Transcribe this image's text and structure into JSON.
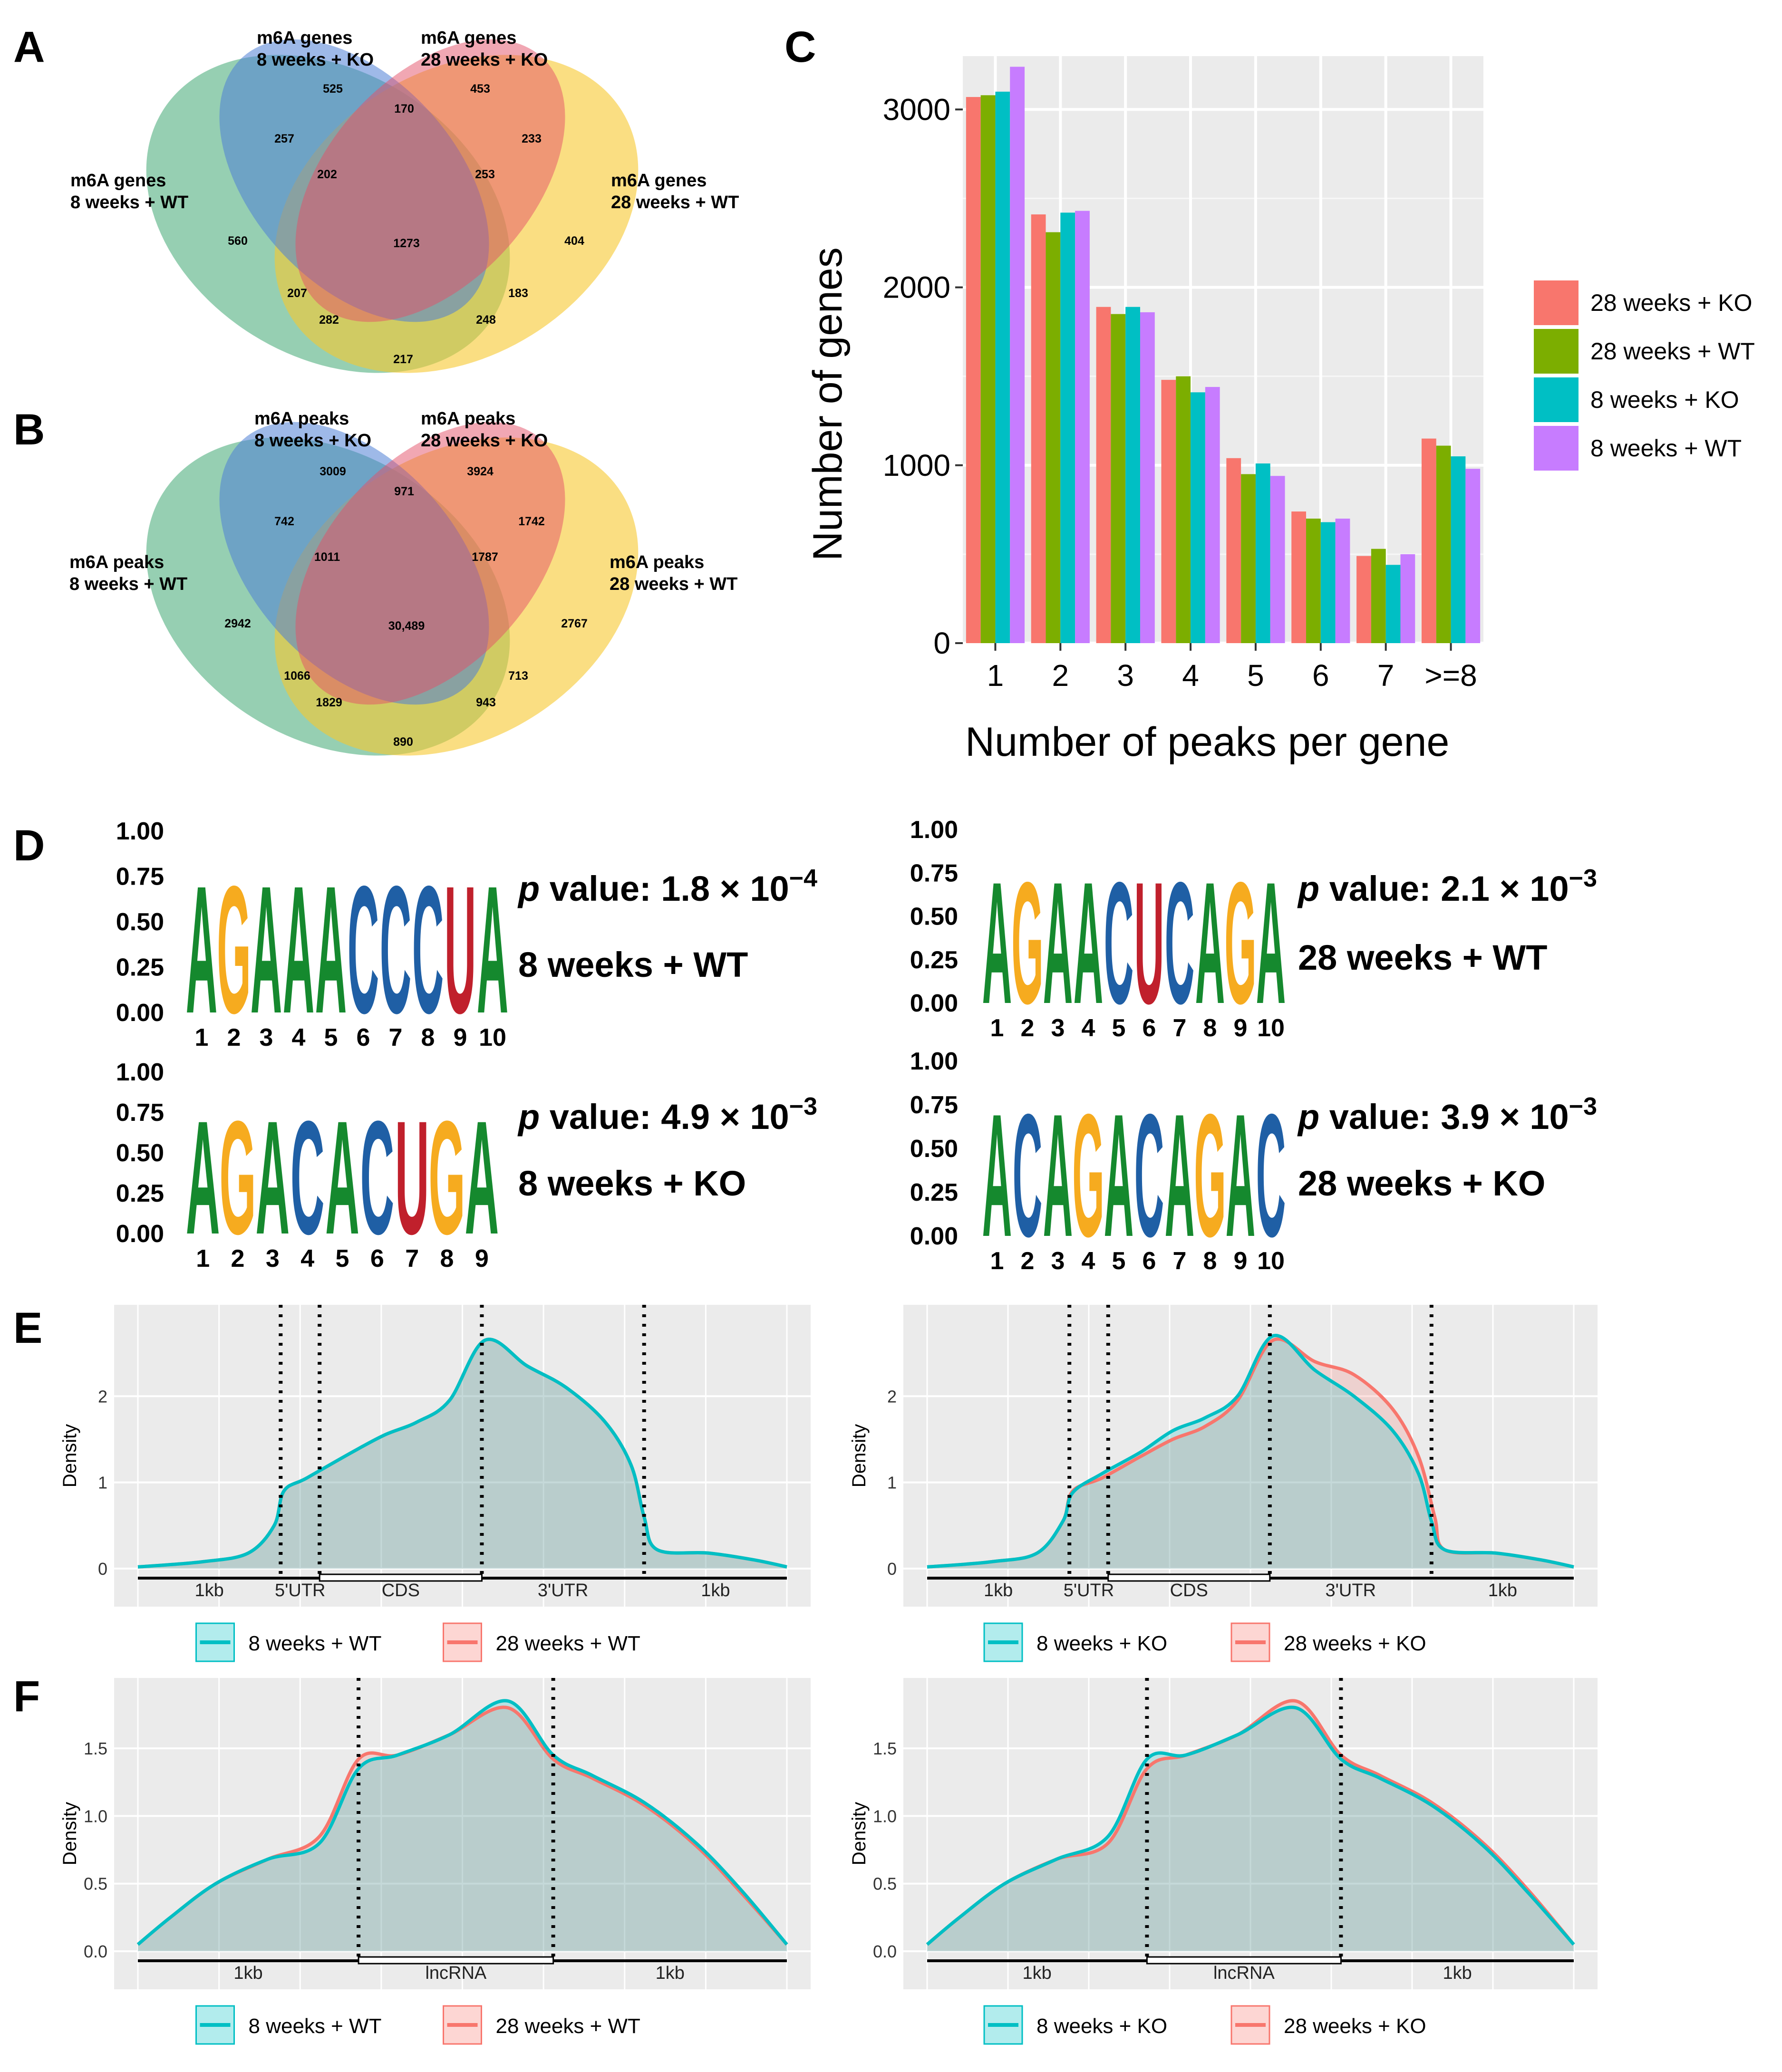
{
  "panel_labels": {
    "A": "A",
    "B": "B",
    "C": "C",
    "D": "D",
    "E": "E",
    "F": "F"
  },
  "venn_genes": {
    "sets": [
      {
        "line1": "m6A genes",
        "line2": "8 weeks + KO",
        "color": "#4f7fd6"
      },
      {
        "line1": "m6A genes",
        "line2": "28 weeks + KO",
        "color": "#e35068"
      },
      {
        "line1": "m6A genes",
        "line2": "8 weeks + WT",
        "color": "#3fa873"
      },
      {
        "line1": "m6A genes",
        "line2": "28 weeks + WT",
        "color": "#f7c82e"
      }
    ],
    "counts": [
      "525",
      "453",
      "170",
      "257",
      "202",
      "233",
      "253",
      "560",
      "1273",
      "404",
      "207",
      "183",
      "282",
      "248",
      "217"
    ]
  },
  "venn_peaks": {
    "sets": [
      {
        "line1": "m6A peaks",
        "line2": "8 weeks + KO"
      },
      {
        "line1": "m6A peaks",
        "line2": "28 weeks + KO"
      },
      {
        "line1": "m6A peaks",
        "line2": "8 weeks + WT"
      },
      {
        "line1": "m6A peaks",
        "line2": "28 weeks + WT"
      }
    ],
    "counts": [
      "3009",
      "3924",
      "971",
      "742",
      "1011",
      "1742",
      "1787",
      "2942",
      "30,489",
      "2767",
      "1066",
      "713",
      "1829",
      "943",
      "890"
    ]
  },
  "chart_data": {
    "type": "bar",
    "title": "",
    "xlabel": "Number of peaks per gene",
    "ylabel": "Number of genes",
    "categories": [
      "1",
      "2",
      "3",
      "4",
      "5",
      "6",
      "7",
      ">=8"
    ],
    "ylim": [
      0,
      3300
    ],
    "yticks": [
      "0",
      "1000",
      "2000",
      "3000"
    ],
    "grid": true,
    "legend_position": "right",
    "series": [
      {
        "name": "28 weeks + KO",
        "color": "#f8766d",
        "values": [
          3070,
          2410,
          1890,
          1480,
          1040,
          740,
          490,
          1150
        ]
      },
      {
        "name": "28 weeks + WT",
        "color": "#7cae00",
        "values": [
          3080,
          2310,
          1850,
          1500,
          950,
          700,
          530,
          1110
        ]
      },
      {
        "name": "8 weeks + KO",
        "color": "#00bfc4",
        "values": [
          3100,
          2420,
          1890,
          1410,
          1010,
          680,
          440,
          1050
        ]
      },
      {
        "name": "8 weeks + WT",
        "color": "#c77cff",
        "values": [
          3240,
          2430,
          1860,
          1440,
          940,
          700,
          500,
          980
        ]
      }
    ]
  },
  "logos": {
    "yticks": [
      "1.00",
      "0.75",
      "0.50",
      "0.25",
      "0.00"
    ],
    "colors": {
      "A": "#15892e",
      "G": "#f6ab1f",
      "C": "#1f5fa5",
      "U": "#c0202c"
    },
    "items": [
      {
        "seq": [
          "A",
          "G",
          "A",
          "A",
          "A",
          "C",
          "C",
          "C",
          "U",
          "A"
        ],
        "positions": [
          "1",
          "2",
          "3",
          "4",
          "5",
          "6",
          "7",
          "8",
          "9",
          "10"
        ],
        "p_label": "p",
        "p_text": " value:  1.8 × 10",
        "p_exp": "−4",
        "name": "8 weeks + WT"
      },
      {
        "seq": [
          "A",
          "G",
          "A",
          "A",
          "C",
          "U",
          "C",
          "A",
          "G",
          "A"
        ],
        "positions": [
          "1",
          "2",
          "3",
          "4",
          "5",
          "6",
          "7",
          "8",
          "9",
          "10"
        ],
        "p_label": "p",
        "p_text": " value:  2.1 × 10",
        "p_exp": "−3",
        "name": "28 weeks + WT"
      },
      {
        "seq": [
          "A",
          "G",
          "A",
          "C",
          "A",
          "C",
          "U",
          "G",
          "A"
        ],
        "positions": [
          "1",
          "2",
          "3",
          "4",
          "5",
          "6",
          "7",
          "8",
          "9"
        ],
        "p_label": "p",
        "p_text": " value:  4.9 × 10",
        "p_exp": "−3",
        "name": "8 weeks + KO"
      },
      {
        "seq": [
          "A",
          "C",
          "A",
          "G",
          "A",
          "C",
          "A",
          "G",
          "A",
          "C"
        ],
        "positions": [
          "1",
          "2",
          "3",
          "4",
          "5",
          "6",
          "7",
          "8",
          "9",
          "10"
        ],
        "p_label": "p",
        "p_text": " value:  3.9 × 10",
        "p_exp": "−3",
        "name": "28 weeks + KO"
      }
    ]
  },
  "density": {
    "ylabel": "Density",
    "mrna_segments": [
      "1kb",
      "5'UTR",
      "CDS",
      "3'UTR",
      "1kb"
    ],
    "lnc_segments": [
      "1kb",
      "lncRNA",
      "1kb"
    ],
    "mrna_yticks": [
      "0",
      "1",
      "2"
    ],
    "lnc_yticks": [
      "0.0",
      "0.5",
      "1.0",
      "1.5"
    ],
    "colors": {
      "teal": "#00bfc4",
      "red": "#f8766d"
    },
    "legend_wt": [
      "8 weeks + WT",
      "28 weeks + WT"
    ],
    "legend_ko": [
      "8 weeks + KO",
      "28 weeks + KO"
    ]
  }
}
